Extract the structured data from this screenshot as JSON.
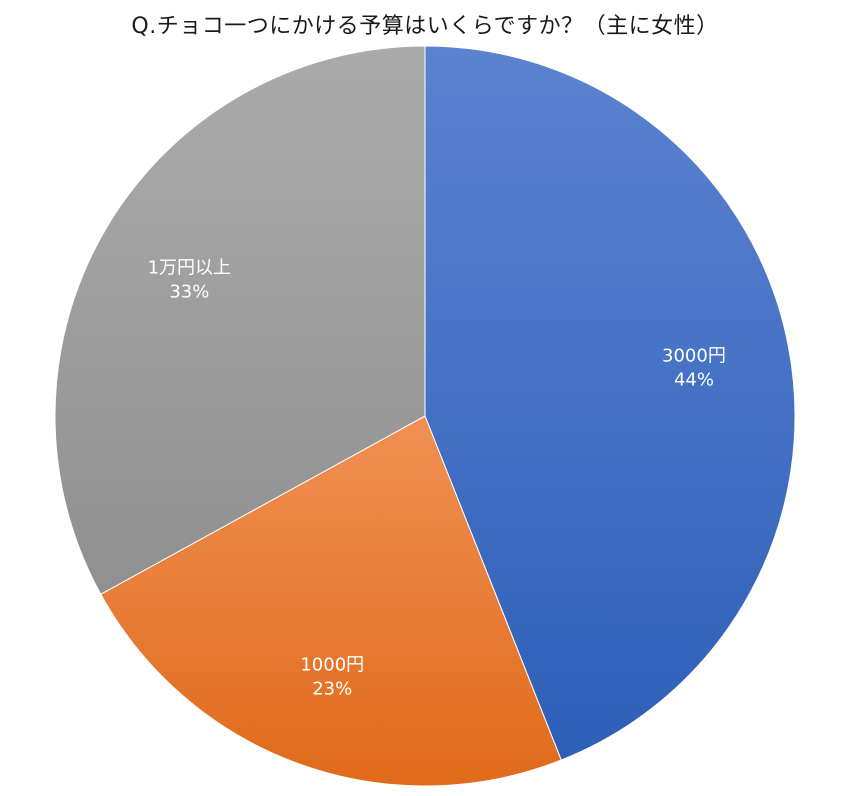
{
  "chart_data": {
    "type": "pie",
    "title": "Q.チョコ一つにかける予算はいくらですか？（主に女性）",
    "slices": [
      {
        "label": "3000円",
        "value": 44,
        "value_label": "44%",
        "color": "#4472C4"
      },
      {
        "label": "1000円",
        "value": 23,
        "value_label": "23%",
        "color": "#ED7D31"
      },
      {
        "label": "1万円以上",
        "value": 33,
        "value_label": "33%",
        "color": "#A5A5A5"
      }
    ],
    "start_angle": "12 o'clock",
    "direction": "clockwise",
    "legend": "none"
  }
}
